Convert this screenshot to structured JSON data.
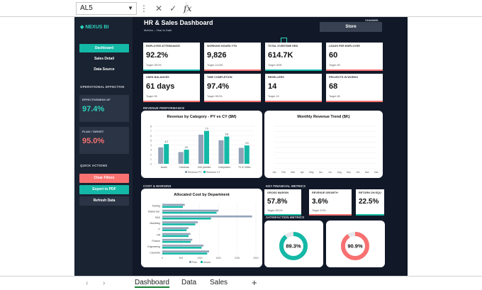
{
  "formula_bar": {
    "cell_ref": "AL5",
    "formula": ""
  },
  "sidebar": {
    "logo": "◆ NEXUS BI",
    "nav": [
      "Dashboard",
      "Sales Detail",
      "Data Source"
    ],
    "operational_heading": "OPERATIONAL EFFECTIVE",
    "effectiveness": {
      "label": "EFFECTIVENESS OF",
      "value": "97.4%"
    },
    "plan_target": {
      "label": "PLAN / TARGET",
      "value": "95.0%"
    },
    "quick_actions_heading": "QUICK ACTIONS",
    "actions": [
      "Clear Filters",
      "Export to PDF",
      "Refresh Data"
    ]
  },
  "header": {
    "title": "HR & Sales Dashboard",
    "subtitle": "Metrics – Year to Date",
    "channel_label": "CHANNEL",
    "channel_value": "Store"
  },
  "kpis": [
    {
      "label": "EMPLOYEE ATTENDANCE",
      "value": "92.2%",
      "target": "Target: 95.0%",
      "status": "#14b8a6"
    },
    {
      "label": "WORKING HOURS YTD",
      "value": "9,826",
      "target": "Target: 10,000",
      "status": "#f87171"
    },
    {
      "label": "TOTAL OVERTIME HRS",
      "value": "614.7K",
      "target": "Target: 600K",
      "status": "#14b8a6"
    },
    {
      "label": "LEADS PER EMPLOYEE",
      "value": "60",
      "target": "Target: 55",
      "status": "#f87171"
    },
    {
      "label": "USED BALANCES",
      "value": "61 days",
      "target": "Target: 55",
      "status": "#f87171"
    },
    {
      "label": "TIME COMPLETION",
      "value": "97.4%",
      "target": "Target: 95.0%",
      "status": "#f87171"
    },
    {
      "label": "RESELLERS",
      "value": "14",
      "target": "Target: 15",
      "status": "#f87171"
    },
    {
      "label": "PROJECTS IN WORKS",
      "value": "68",
      "target": "Target: 65",
      "status": "#f87171"
    }
  ],
  "sections": {
    "revenue": "REVENUE PERFORMANCE",
    "cost": "COST & MARGINS",
    "financial": "KEY FINANCIAL METRICS",
    "satisfaction": "SATISFACTION METRICS"
  },
  "revenue_chart": {
    "title": "Revenue by Category - PY vs CY ($M)",
    "categories": [
      "Audio",
      "Cameras",
      "Cell phones",
      "Computers",
      "TV & Video"
    ],
    "series": [
      {
        "name": "Revenue PY",
        "values": [
          3.5,
          2.5,
          6.2,
          5.0,
          3.4
        ],
        "color": "#94a3b8"
      },
      {
        "name": "Revenue CY",
        "values": [
          4.2,
          3.0,
          7.0,
          5.8,
          3.9
        ],
        "color": "#14b8a6"
      }
    ],
    "data_labels": [
      "4.2",
      "3.0",
      "7.0",
      "5.8",
      "3.9"
    ],
    "yticks": [
      "8",
      "7",
      "6",
      "5",
      "4",
      "3",
      "2",
      "1",
      "0"
    ]
  },
  "trend_chart": {
    "title": "Monthly Revenue Trend ($K)",
    "months": [
      "Jan",
      "Feb",
      "Mar",
      "Apr",
      "May",
      "Jun",
      "Jul",
      "Aug",
      "Sep",
      "Oct",
      "Nov",
      "Dec"
    ]
  },
  "cost_chart": {
    "title": "Allocated Cost by Department",
    "categories": [
      "Training",
      "Shared Ser.",
      "R&D",
      "Marketing",
      "IT",
      "HR",
      "Finance",
      "Engineering",
      "Corporate"
    ],
    "series": [
      {
        "name": "Plan",
        "values": [
          600,
          1500,
          2400,
          950,
          700,
          750,
          800,
          1100,
          1250
        ],
        "color": "#94a3b8"
      },
      {
        "name": "Actual",
        "values": [
          550,
          1450,
          1300,
          880,
          650,
          700,
          760,
          1050,
          1200
        ],
        "color": "#14b8a6"
      }
    ],
    "xticks": [
      "0",
      "500",
      "1000",
      "1500",
      "2000",
      "2500"
    ]
  },
  "financial": [
    {
      "label": "GROSS MARGIN",
      "value": "57.8%",
      "target": "Target: 55.0%",
      "status": "#14b8a6"
    },
    {
      "label": "REVENUE GROWTH",
      "value": "3.6%",
      "target": "Target: 5.0%",
      "status": "#f87171"
    },
    {
      "label": "RETURN ON EQU",
      "value": "22.5%",
      "target": "",
      "status": "#14b8a6"
    }
  ],
  "satisfaction": [
    {
      "value": "89.3%",
      "fraction": 0.893,
      "color": "#14b8a6"
    },
    {
      "value": "90.9%",
      "fraction": 0.909,
      "color": "#f87171"
    }
  ],
  "sheet_tabs": [
    "Dashboard",
    "Data",
    "Sales"
  ]
}
